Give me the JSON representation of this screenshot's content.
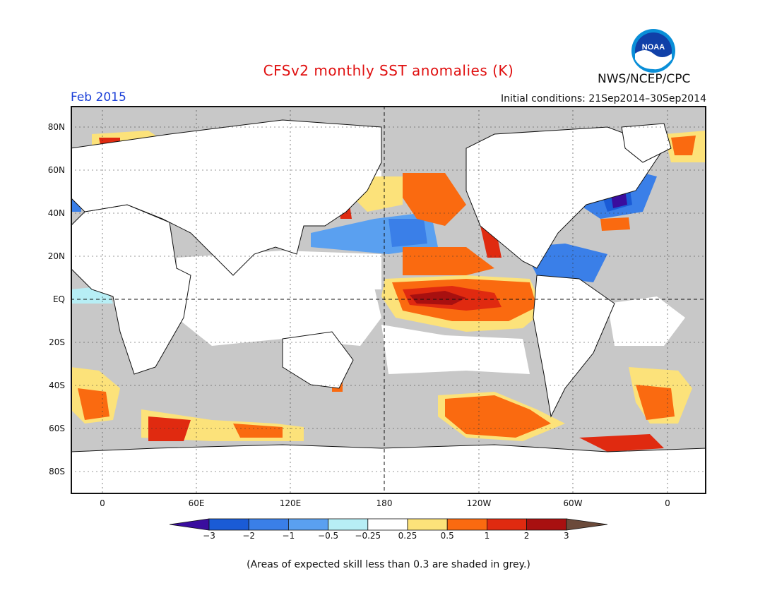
{
  "header": {
    "title": "CFSv2 monthly SST anomalies (K)",
    "org": "NWS/NCEP/CPC",
    "month": "Feb 2015",
    "initial_conditions": "Initial conditions: 21Sep2014–30Sep2014",
    "logo_text": "NOAA"
  },
  "map": {
    "lat_labels": [
      "80N",
      "60N",
      "40N",
      "20N",
      "EQ",
      "20S",
      "40S",
      "60S",
      "80S"
    ],
    "lon_labels": [
      "0",
      "60E",
      "120E",
      "180",
      "120W",
      "60W",
      "0"
    ]
  },
  "colorbar": {
    "labels": [
      "−3",
      "−2",
      "−1",
      "−0.5",
      "−0.25",
      "0.25",
      "0.5",
      "1",
      "2",
      "3"
    ],
    "colors": [
      "#3a0d9e",
      "#1a5bd6",
      "#3a7fe8",
      "#5aa0f0",
      "#b7eef5",
      "#ffffff",
      "#fce27a",
      "#fa6a10",
      "#e02a10",
      "#a81010",
      "#6b4a3a"
    ]
  },
  "footnote": "(Areas of expected skill less than 0.3 are shaded in grey.)",
  "colors": {
    "land": "#ffffff",
    "no_skill": "#c8c8c8",
    "title": "#e01010",
    "month": "#1a3fd8"
  }
}
